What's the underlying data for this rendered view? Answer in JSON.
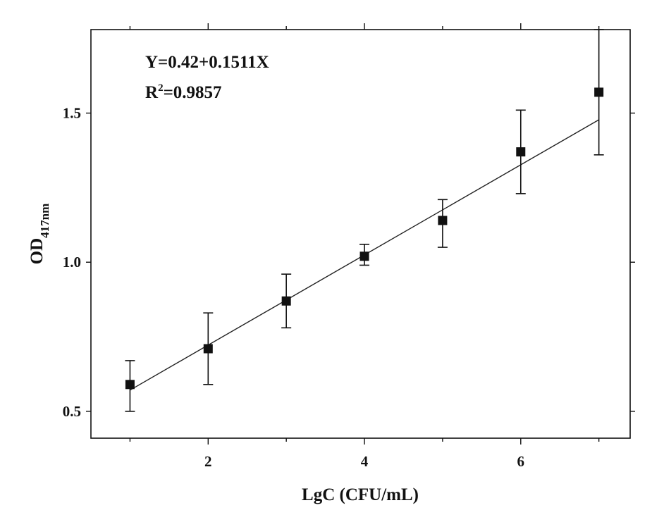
{
  "chart_data": {
    "type": "scatter",
    "x": [
      1,
      2,
      3,
      4,
      5,
      6,
      7
    ],
    "y": [
      0.59,
      0.71,
      0.87,
      1.02,
      1.14,
      1.37,
      1.57
    ],
    "error_low": [
      0.5,
      0.59,
      0.78,
      0.99,
      1.05,
      1.23,
      1.36
    ],
    "error_high": [
      0.67,
      0.83,
      0.96,
      1.06,
      1.21,
      1.51,
      1.78
    ],
    "fit": {
      "intercept": 0.42,
      "slope": 0.1511
    },
    "annotations": {
      "equation": "Y=0.42+0.1511X",
      "r2_prefix": "R",
      "r2_sup": "2",
      "r2_value": "=0.9857"
    },
    "xlabel": "LgC (CFU/mL)",
    "ylabel_main": "OD",
    "ylabel_sub": "417nm",
    "xlim": [
      0.5,
      7.4
    ],
    "ylim": [
      0.41,
      1.78
    ],
    "x_ticks_major": [
      2,
      4,
      6
    ],
    "x_ticks_minor": [
      1,
      3,
      5,
      7
    ],
    "y_ticks": [
      0.5,
      1.0,
      1.5
    ],
    "y_tick_labels": [
      "0.5",
      "1.0",
      "1.5"
    ],
    "x_tick_labels": [
      "2",
      "4",
      "6"
    ],
    "grid": false,
    "legend": "none",
    "colors": {
      "marker": "#111111",
      "line": "#222222"
    }
  }
}
